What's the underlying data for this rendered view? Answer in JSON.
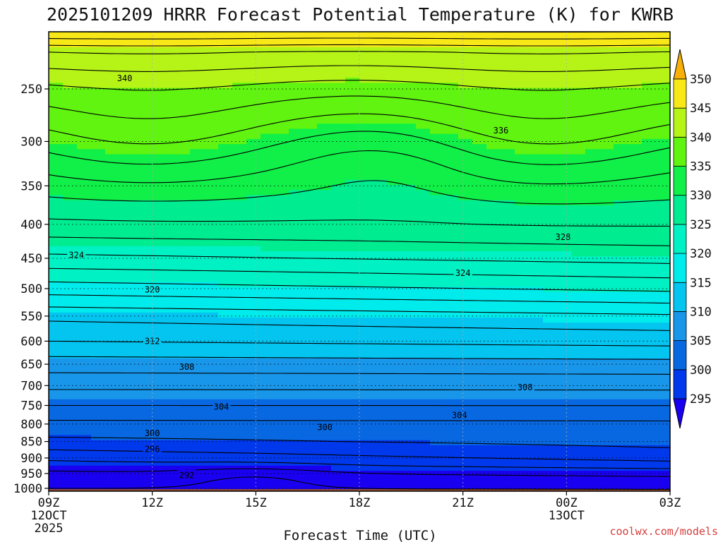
{
  "chart_data": {
    "type": "heatmap",
    "title": "2025101209 HRRR Forecast Potential Temperature (K) for KWRB",
    "xlabel": "Forecast Time (UTC)",
    "ylabel": "",
    "x_start_label": [
      "09Z",
      "12OCT",
      "2025"
    ],
    "x_ticks": [
      {
        "hour": 0,
        "label": "09Z"
      },
      {
        "hour": 3,
        "label": "12Z"
      },
      {
        "hour": 6,
        "label": "15Z"
      },
      {
        "hour": 9,
        "label": "18Z"
      },
      {
        "hour": 12,
        "label": "21Z"
      },
      {
        "hour": 15,
        "label": "00Z",
        "sublabel": "13OCT"
      },
      {
        "hour": 18,
        "label": "03Z"
      }
    ],
    "x_range_hours": [
      0,
      18
    ],
    "y_ticks_hpa": [
      250,
      300,
      350,
      400,
      450,
      500,
      550,
      600,
      650,
      700,
      750,
      800,
      850,
      900,
      950,
      1000
    ],
    "y_range_hpa": [
      1010,
      205
    ],
    "surface_pressure_hpa": 1003,
    "colorbar": {
      "levels": [
        295,
        300,
        305,
        310,
        315,
        320,
        325,
        330,
        335,
        340,
        345,
        350
      ],
      "labels": [
        "295",
        "300",
        "305",
        "310",
        "315",
        "320",
        "325",
        "330",
        "335",
        "340",
        "345",
        "350"
      ],
      "colors": [
        "#1a00f0",
        "#0038ec",
        "#0868e2",
        "#1896ea",
        "#04c4f0",
        "#00ecec",
        "#00f2c4",
        "#00ec90",
        "#10f048",
        "#60f410",
        "#b6f418",
        "#f8e818",
        "#f8b008"
      ]
    },
    "contour_interval_K": 2,
    "contour_labels": [
      {
        "value": 340,
        "hour": 2.2,
        "hpa": 241
      },
      {
        "value": 336,
        "hour": 13.1,
        "hpa": 289
      },
      {
        "value": 328,
        "hour": 14.9,
        "hpa": 418
      },
      {
        "value": 324,
        "hour": 0.8,
        "hpa": 445
      },
      {
        "value": 324,
        "hour": 12.0,
        "hpa": 474
      },
      {
        "value": 320,
        "hour": 3.0,
        "hpa": 502
      },
      {
        "value": 312,
        "hour": 3.0,
        "hpa": 600
      },
      {
        "value": 308,
        "hour": 4.0,
        "hpa": 656
      },
      {
        "value": 308,
        "hour": 13.8,
        "hpa": 705
      },
      {
        "value": 304,
        "hour": 5.0,
        "hpa": 754
      },
      {
        "value": 304,
        "hour": 11.9,
        "hpa": 776
      },
      {
        "value": 300,
        "hour": 3.0,
        "hpa": 826
      },
      {
        "value": 300,
        "hour": 8.0,
        "hpa": 809
      },
      {
        "value": 296,
        "hour": 3.0,
        "hpa": 873
      },
      {
        "value": 292,
        "hour": 4.0,
        "hpa": 956
      }
    ],
    "theta_profile": [
      {
        "hpa": 1000,
        "theta": 292.0
      },
      {
        "hpa": 950,
        "theta": 293.5
      },
      {
        "hpa": 900,
        "theta": 296.5
      },
      {
        "hpa": 850,
        "theta": 299.5
      },
      {
        "hpa": 800,
        "theta": 301.5
      },
      {
        "hpa": 750,
        "theta": 304.0
      },
      {
        "hpa": 700,
        "theta": 306.5
      },
      {
        "hpa": 650,
        "theta": 309.0
      },
      {
        "hpa": 600,
        "theta": 312.0
      },
      {
        "hpa": 550,
        "theta": 314.5
      },
      {
        "hpa": 500,
        "theta": 319.0
      },
      {
        "hpa": 450,
        "theta": 323.5
      },
      {
        "hpa": 400,
        "theta": 327.5
      },
      {
        "hpa": 350,
        "theta": 331.0
      },
      {
        "hpa": 300,
        "theta": 335.0
      },
      {
        "hpa": 250,
        "theta": 339.5
      },
      {
        "hpa": 220,
        "theta": 344.0
      },
      {
        "hpa": 205,
        "theta": 350.0
      }
    ]
  },
  "credit": "coolwx.com/models"
}
